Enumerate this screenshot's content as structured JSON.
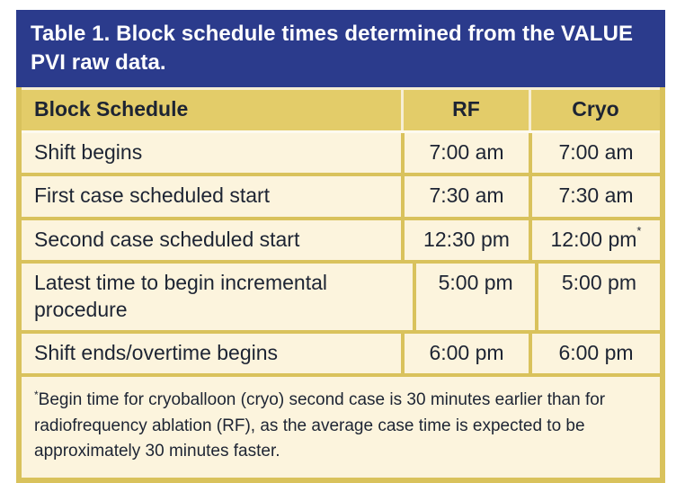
{
  "table": {
    "title": "Table 1. Block schedule times determined from the VALUE PVI raw data.",
    "columns": [
      "Block Schedule",
      "RF",
      "Cryo"
    ],
    "rows": [
      {
        "label": "Shift begins",
        "rf": "7:00 am",
        "cryo": "7:00 am",
        "cryo_sup": ""
      },
      {
        "label": "First case scheduled start",
        "rf": "7:30 am",
        "cryo": "7:30 am",
        "cryo_sup": ""
      },
      {
        "label": "Second case scheduled start",
        "rf": "12:30 pm",
        "cryo": "12:00 pm",
        "cryo_sup": "*"
      },
      {
        "label": "Latest time to begin incremental procedure",
        "rf": "5:00 pm",
        "cryo": "5:00 pm",
        "cryo_sup": ""
      },
      {
        "label": "Shift ends/overtime begins",
        "rf": "6:00 pm",
        "cryo": "6:00 pm",
        "cryo_sup": ""
      }
    ],
    "footnote": {
      "marker": "*",
      "text": "Begin time for cryoballoon (cryo) second case is 30 minutes earlier than for radiofrequency ablation (RF), as the average case time is expected to be approximately 30 minutes faster."
    }
  },
  "colors": {
    "title_band": "#2b3b8c",
    "header_row": "#e3cc69",
    "body_row": "#fcf4dd",
    "frame_gold": "#d9c25c",
    "text_dark": "#1d2433",
    "title_text": "#ffffff"
  }
}
